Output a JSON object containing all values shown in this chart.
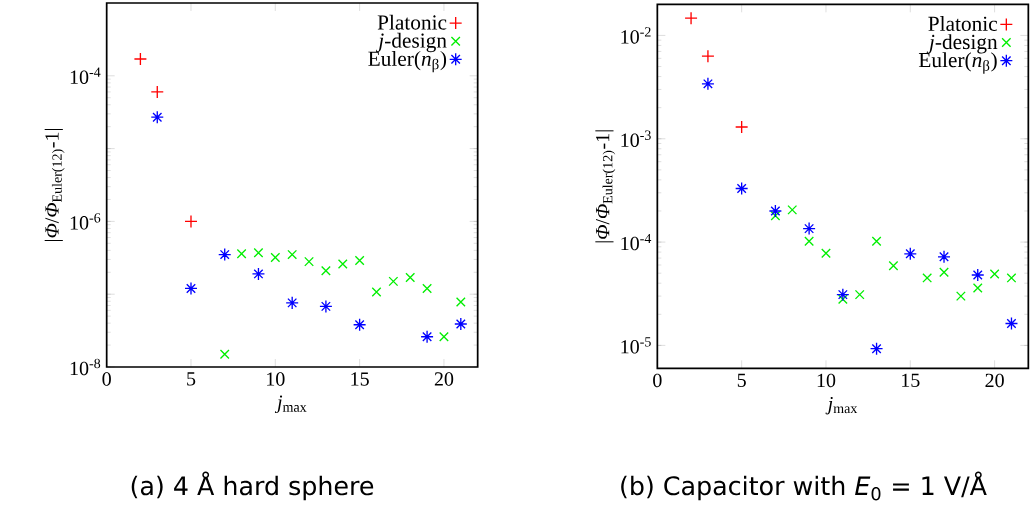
{
  "chart_data": [
    {
      "type": "scatter",
      "title": "(a) 4 Å  hard sphere",
      "xlabel": "*j*$_{max}$",
      "ylabel": "|*Φ*/*Φ*$_{Euler(12)}$-1|",
      "log": true,
      "legend": "top right",
      "xlim": [
        0,
        22
      ],
      "ylim": [
        1e-08,
        0.001
      ],
      "xticks": [
        0,
        5,
        10,
        15,
        20
      ],
      "yticks": [
        {
          "value": 1e-08,
          "label": "10$^{-8}$"
        },
        {
          "value": 1e-07,
          "label": null
        },
        {
          "value": 1e-06,
          "label": "10$^{-6}$"
        },
        {
          "value": 1e-05,
          "label": null
        },
        {
          "value": 0.0001,
          "label": "10$^{-4}$"
        }
      ],
      "series": [
        {
          "name": "Platonic",
          "color": "#ff0000",
          "marker": "plus",
          "x": [
            2,
            3,
            5
          ],
          "values": [
            0.00017,
            6e-05,
            1e-06
          ]
        },
        {
          "name": "*j*-design",
          "color": "#00ee00",
          "marker": "cross",
          "x": [
            7,
            8,
            9,
            10,
            11,
            12,
            13,
            14,
            15,
            16,
            17,
            18,
            19,
            20,
            21
          ],
          "values": [
            1.5e-08,
            3.6e-07,
            3.7e-07,
            3.2e-07,
            3.5e-07,
            2.8e-07,
            2.1e-07,
            2.6e-07,
            2.9e-07,
            1.07e-07,
            1.5e-07,
            1.7e-07,
            1.2e-07,
            2.6e-08,
            7.8e-08
          ]
        },
        {
          "name": "Euler(*n*$_{β}$)",
          "color": "#0000ff",
          "x": [
            3,
            5,
            7,
            9,
            11,
            13,
            15,
            19,
            21
          ],
          "values": [
            2.7e-05,
            1.2e-07,
            3.5e-07,
            1.9e-07,
            7.6e-08,
            6.8e-08,
            3.8e-08,
            2.6e-08,
            3.9e-08
          ]
        }
      ]
    },
    {
      "type": "scatter",
      "title": "(b) Capacitor with *E*$_{0}$ = 1 V/Å",
      "xlabel": "*j*$_{max}$",
      "ylabel": "|*Φ*/*Φ*$_{Euler(12)}$-1|",
      "log": true,
      "legend": "top right",
      "xlim": [
        0,
        22
      ],
      "ylim": [
        6e-06,
        0.02
      ],
      "xticks": [
        0,
        5,
        10,
        15,
        20
      ],
      "yticks": [
        {
          "value": 1e-05,
          "label": "10$^{-5}$"
        },
        {
          "value": 0.0001,
          "label": "10$^{-4}$"
        },
        {
          "value": 0.001,
          "label": "10$^{-3}$"
        },
        {
          "value": 0.01,
          "label": "10$^{-2}$"
        }
      ],
      "series": [
        {
          "name": "Platonic",
          "color": "#ff0000",
          "marker": "plus",
          "x": [
            2,
            3,
            5
          ],
          "values": [
            0.0147,
            0.0063,
            0.0013
          ]
        },
        {
          "name": "*j*-design",
          "color": "#00ee00",
          "marker": "cross",
          "x": [
            7,
            8,
            9,
            10,
            11,
            12,
            13,
            14,
            16,
            17,
            18,
            19,
            20,
            21
          ],
          "values": [
            0.00018,
            0.000205,
            0.000102,
            7.8e-05,
            2.8e-05,
            3.1e-05,
            0.000102,
            5.9e-05,
            4.5e-05,
            5.1e-05,
            3e-05,
            3.6e-05,
            4.9e-05,
            4.5e-05
          ]
        },
        {
          "name": "Euler(*n*$_{β}$)",
          "color": "#0000ff",
          "x": [
            3,
            5,
            7,
            9,
            11,
            13,
            15,
            17,
            19,
            21
          ],
          "values": [
            0.0034,
            0.00033,
            0.0002,
            0.000135,
            3.1e-05,
            9.3e-06,
            7.7e-05,
            7.2e-05,
            4.8e-05,
            1.63e-05
          ]
        }
      ]
    }
  ]
}
